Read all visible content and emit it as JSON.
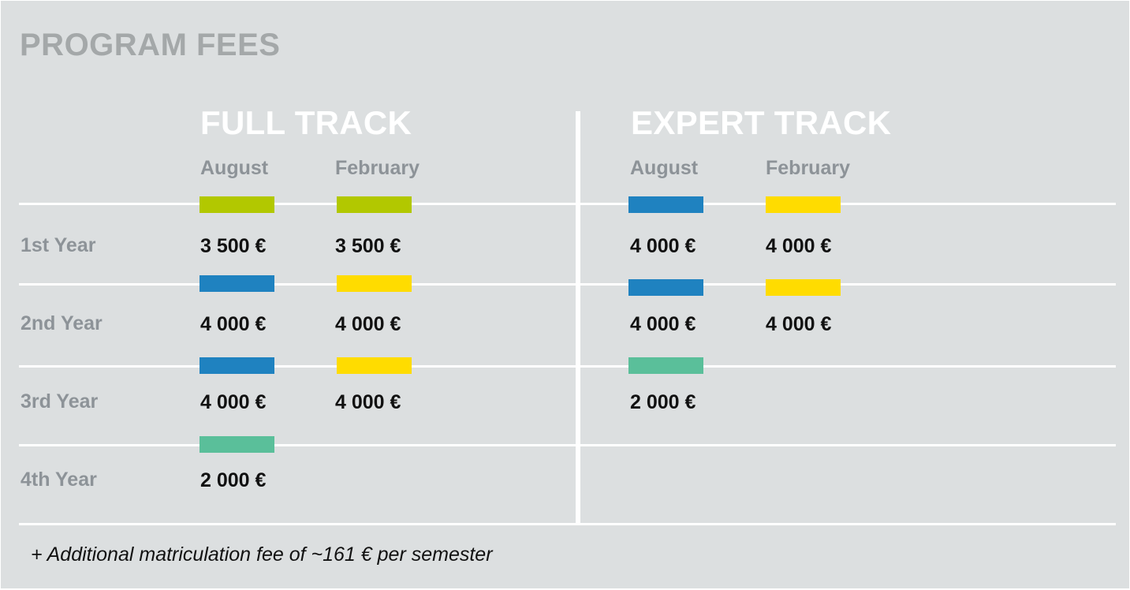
{
  "title": "PROGRAM FEES",
  "full_track": {
    "title": "FULL TRACK",
    "col_august": "August",
    "col_february": "February",
    "years": [
      {
        "label": "1st Year",
        "august": "3 500 €",
        "february": "3 500 €"
      },
      {
        "label": "2nd Year",
        "august": "4 000 €",
        "february": "4 000 €"
      },
      {
        "label": "3rd Year",
        "august": "4 000 €",
        "february": "4 000 €"
      },
      {
        "label": "4th Year",
        "august": "2 000 €",
        "february": ""
      }
    ]
  },
  "expert_track": {
    "title": "EXPERT TRACK",
    "col_august": "August",
    "col_february": "February",
    "years": [
      {
        "august": "4 000 €",
        "february": "4 000 €"
      },
      {
        "august": "4 000 €",
        "february": "4 000 €"
      },
      {
        "august": "2 000 €",
        "february": ""
      }
    ]
  },
  "colors": {
    "green": "#b2c800",
    "blue": "#1f82c0",
    "yellow": "#ffdc00",
    "teal": "#5abf9a"
  },
  "footnote": "+ Additional matriculation fee of ~161 € per semester"
}
